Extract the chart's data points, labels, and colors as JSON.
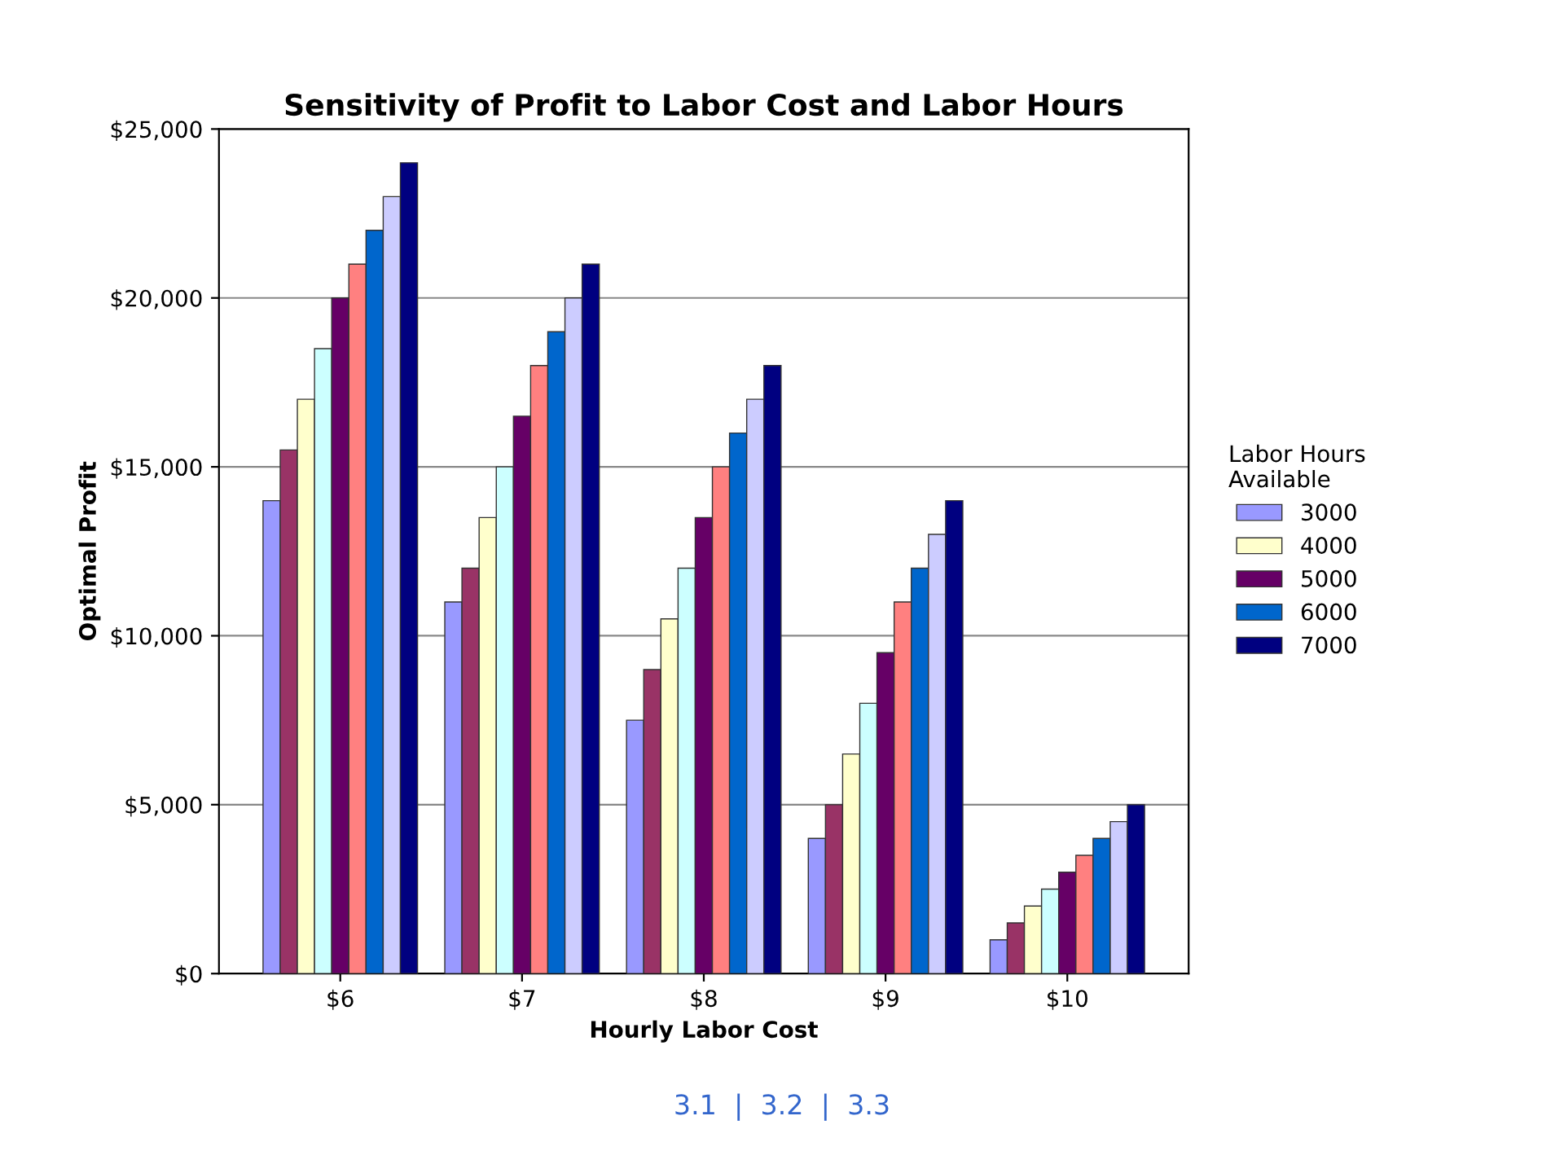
{
  "chart_data": {
    "type": "bar",
    "title": "Sensitivity of Profit to Labor Cost and Labor Hours",
    "xlabel": "Hourly Labor Cost",
    "ylabel": "Optimal Profit",
    "legend_title": "Labor Hours\nAvailable",
    "categories": [
      "$6",
      "$7",
      "$8",
      "$9",
      "$10"
    ],
    "series": [
      {
        "name": "3000",
        "color": "#9999ff",
        "values": [
          14000,
          11000,
          7500,
          4000,
          1000
        ]
      },
      {
        "color": "#993366",
        "values": [
          15500,
          12000,
          9000,
          5000,
          1500
        ]
      },
      {
        "name": "4000",
        "color": "#ffffcc",
        "values": [
          17000,
          13500,
          10500,
          6500,
          2000
        ]
      },
      {
        "color": "#ccffff",
        "values": [
          18500,
          15000,
          12000,
          8000,
          2500
        ]
      },
      {
        "name": "5000",
        "color": "#660066",
        "values": [
          20000,
          16500,
          13500,
          9500,
          3000
        ]
      },
      {
        "color": "#ff8080",
        "values": [
          21000,
          18000,
          15000,
          11000,
          3500
        ]
      },
      {
        "name": "6000",
        "color": "#0066cc",
        "values": [
          22000,
          19000,
          16000,
          12000,
          4000
        ]
      },
      {
        "color": "#ccccff",
        "values": [
          23000,
          20000,
          17000,
          13000,
          4500
        ]
      },
      {
        "name": "7000",
        "color": "#000080",
        "values": [
          24000,
          21000,
          18000,
          14000,
          5000
        ]
      }
    ],
    "ylim": [
      0,
      25000
    ],
    "yticks": [
      {
        "value": 0,
        "label": "$0"
      },
      {
        "value": 5000,
        "label": "$5,000"
      },
      {
        "value": 10000,
        "label": "$10,000"
      },
      {
        "value": 15000,
        "label": "$15,000"
      },
      {
        "value": 20000,
        "label": "$20,000"
      },
      {
        "value": 25000,
        "label": "$25,000"
      }
    ],
    "grid": "y",
    "legend": "right",
    "annotations": [
      "3.1  |  3.2  |  3.3"
    ]
  }
}
